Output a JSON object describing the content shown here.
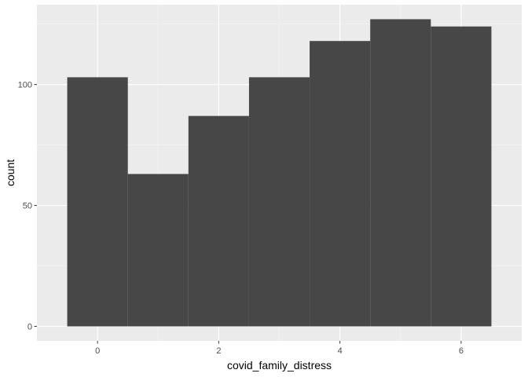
{
  "chart_data": {
    "type": "bar",
    "xlabel": "covid_family_distress",
    "ylabel": "count",
    "x": [
      0,
      1,
      2,
      3,
      4,
      5,
      6
    ],
    "values": [
      103,
      63,
      87,
      103,
      118,
      127,
      124
    ],
    "bin_width": 1,
    "xlim": [
      -1,
      7
    ],
    "ylim": [
      -6,
      133
    ],
    "x_ticks": [
      0,
      2,
      4,
      6
    ],
    "x_tick_labels": [
      "0",
      "2",
      "4",
      "6"
    ],
    "x_minor_ticks": [
      1,
      3,
      5
    ],
    "y_ticks": [
      0,
      50,
      100
    ],
    "y_tick_labels": [
      "0",
      "50",
      "100"
    ],
    "y_minor_ticks": [
      25,
      75,
      125
    ],
    "grid": true,
    "colors": {
      "bar_fill": "#474747",
      "panel_background": "#ebebeb",
      "major_grid": "#ffffff",
      "minor_grid": "#f5f5f5",
      "tick": "#333333"
    }
  }
}
